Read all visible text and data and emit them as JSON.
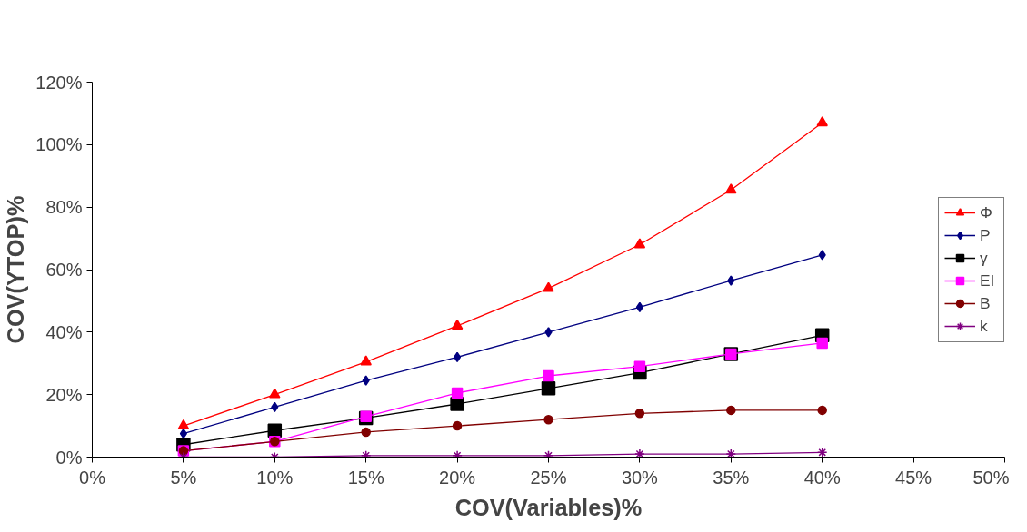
{
  "chart_data": {
    "type": "line",
    "xlabel": "COV(Variables)%",
    "ylabel": "COV(YTOP)%",
    "x": [
      5,
      10,
      15,
      20,
      25,
      30,
      35,
      40
    ],
    "series": [
      {
        "name": "Φ",
        "color": "#ff0000",
        "marker": "triangle",
        "values": [
          10,
          20,
          30.5,
          42,
          54,
          68,
          85.5,
          107
        ]
      },
      {
        "name": "P",
        "color": "#000080",
        "marker": "diamond",
        "values": [
          7.5,
          16,
          24.5,
          32,
          40,
          48,
          56.5,
          64.7
        ]
      },
      {
        "name": "γ",
        "color": "#000000",
        "marker": "square",
        "values": [
          4,
          8.5,
          12.5,
          17,
          22,
          27,
          33,
          39
        ]
      },
      {
        "name": "EI",
        "color": "#ff00ff",
        "marker": "square",
        "values": [
          2,
          5,
          13,
          20.5,
          26,
          29,
          33,
          36.5
        ]
      },
      {
        "name": "B",
        "color": "#800000",
        "marker": "circle",
        "values": [
          2,
          5,
          8,
          10,
          12,
          14,
          15,
          15
        ]
      },
      {
        "name": "k",
        "color": "#800080",
        "marker": "cross",
        "values": [
          0,
          0,
          0.5,
          0.5,
          0.5,
          1,
          1,
          1.5
        ]
      }
    ],
    "xlim": [
      0,
      50
    ],
    "xticks": [
      {
        "value": 0,
        "label": "0%"
      },
      {
        "value": 5,
        "label": "5%"
      },
      {
        "value": 10,
        "label": "10%"
      },
      {
        "value": 15,
        "label": "15%"
      },
      {
        "value": 20,
        "label": "20%"
      },
      {
        "value": 25,
        "label": "25%"
      },
      {
        "value": 30,
        "label": "30%"
      },
      {
        "value": 35,
        "label": "35%"
      },
      {
        "value": 40,
        "label": "40%"
      },
      {
        "value": 45,
        "label": "45%"
      },
      {
        "value": 50,
        "label": "50%"
      }
    ],
    "ylim": [
      0,
      120
    ],
    "yticks": [
      {
        "value": 0,
        "label": "0%"
      },
      {
        "value": 20,
        "label": "20%"
      },
      {
        "value": 40,
        "label": "40%"
      },
      {
        "value": 60,
        "label": "60%"
      },
      {
        "value": 80,
        "label": "80%"
      },
      {
        "value": 100,
        "label": "100%"
      },
      {
        "value": 120,
        "label": "120%"
      }
    ],
    "grid": false,
    "legend": "right",
    "line_style": "solid"
  }
}
